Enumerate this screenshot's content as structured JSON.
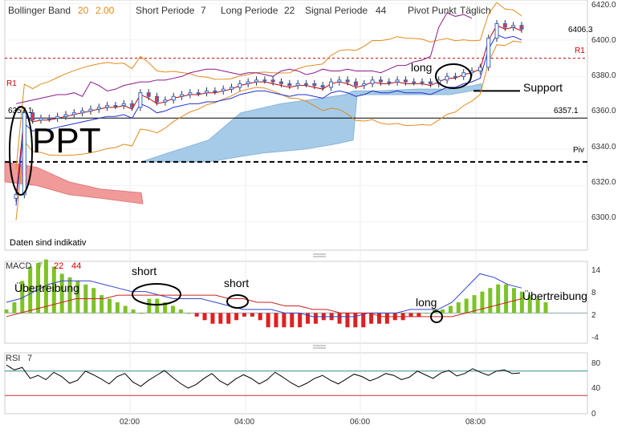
{
  "header": {
    "bb_label": "Bollinger Band",
    "bb_p1": "20",
    "bb_p2": "2.00",
    "short_label": "Short Periode",
    "short_val": "7",
    "long_label": "Long Periode",
    "long_val": "22",
    "signal_label": "Signal Periode",
    "signal_val": "44",
    "pivot_label": "Pivot Punkt",
    "pivot_val": "Täglich"
  },
  "price_panel": {
    "y_ticks": [
      "6420.0",
      "6400.0",
      "6380.0",
      "6360.0",
      "6340.0",
      "6320.0",
      "6300.0"
    ],
    "y_tick_values": [
      6420,
      6400,
      6380,
      6360,
      6340,
      6320,
      6300
    ],
    "last_price": "6406.3",
    "support_price": "6357.1",
    "r1_label": "R1",
    "piv_label": "Piv",
    "disclaimer": "Daten sind indikativ",
    "annotations": {
      "ppt": "PPT",
      "long": "long",
      "support": "Support"
    }
  },
  "macd_panel": {
    "title": "MACD",
    "p1": "7",
    "p2": "22",
    "p3": "44",
    "y_ticks": [
      "14",
      "8",
      "2",
      "-4"
    ],
    "y_tick_values": [
      14,
      8,
      2,
      -4
    ],
    "annotations": {
      "uebertreibung_left": "Übertreibung",
      "short1": "short",
      "short2": "short",
      "long": "long",
      "uebertreibung_right": "Übertreibung"
    }
  },
  "rsi_panel": {
    "title": "RSI",
    "p1": "7",
    "y_ticks": [
      "80",
      "40",
      "0"
    ],
    "y_tick_values": [
      80,
      40,
      0
    ],
    "upper_level": 70,
    "lower_level": 30
  },
  "x_axis": {
    "ticks": [
      "02:00",
      "04:00",
      "06:00",
      "08:00"
    ]
  },
  "chart_data": {
    "type": "line",
    "title": "",
    "x_ticks": [
      "02:00",
      "04:00",
      "06:00",
      "08:00"
    ],
    "price": {
      "ylim": [
        6288,
        6422
      ],
      "candles_close": [
        6315,
        6360,
        6356,
        6357,
        6357,
        6358,
        6359,
        6360,
        6361,
        6362,
        6363,
        6364,
        6364,
        6365,
        6363,
        6371,
        6369,
        6366,
        6367,
        6369,
        6370,
        6371,
        6371,
        6372,
        6372,
        6373,
        6374,
        6376,
        6377,
        6378,
        6378,
        6377,
        6376,
        6375,
        6376,
        6376,
        6375,
        6374,
        6377,
        6378,
        6377,
        6375,
        6376,
        6378,
        6377,
        6377,
        6378,
        6377,
        6377,
        6377,
        6376,
        6378,
        6380,
        6380,
        6382,
        6383,
        6385,
        6401,
        6409,
        6407,
        6408,
        6406
      ],
      "r1_level": 6390,
      "support_level": 6357.1,
      "pivot_level": 6333,
      "last": 6406.3
    },
    "macd": {
      "ylim": [
        -6,
        16
      ],
      "histogram": [
        1,
        3,
        9,
        13,
        14,
        15,
        13,
        11,
        10,
        9,
        8,
        7,
        5,
        4,
        3,
        2,
        1,
        0,
        4,
        4,
        3,
        2,
        1,
        0,
        -1,
        -2,
        -3,
        -3,
        -3,
        -2,
        -1,
        -1,
        -2,
        -4,
        -4,
        -4,
        -4,
        -4,
        -3,
        -3,
        -2,
        -2,
        -3,
        -4,
        -4,
        -4,
        -3,
        -3,
        -3,
        -2,
        -2,
        -1,
        -1,
        0,
        1,
        1,
        2,
        3,
        4,
        5,
        6,
        7,
        8,
        8,
        7,
        6,
        5,
        4,
        3
      ],
      "series": [
        {
          "name": "MACD",
          "values": [
            5,
            6,
            8,
            10,
            11,
            11,
            11,
            10,
            9,
            8,
            8,
            7,
            6,
            6,
            6,
            5,
            4,
            3,
            3,
            3,
            2,
            2,
            1,
            1,
            1,
            1,
            2,
            2,
            2,
            3,
            3,
            3,
            5,
            9,
            13,
            12,
            10,
            9
          ]
        },
        {
          "name": "Signal",
          "values": [
            1,
            2,
            3,
            4,
            5,
            6,
            6,
            6,
            7,
            7,
            7,
            7,
            7,
            7,
            7,
            7,
            6,
            6,
            5,
            5,
            4,
            4,
            3,
            3,
            2,
            2,
            2,
            1,
            1,
            1,
            1,
            1,
            1,
            2,
            3,
            4,
            5,
            6
          ]
        }
      ]
    },
    "rsi": {
      "ylim": [
        0,
        100
      ],
      "values": [
        80,
        72,
        76,
        58,
        63,
        56,
        68,
        61,
        50,
        55,
        70,
        64,
        57,
        49,
        61,
        66,
        52,
        45,
        55,
        63,
        71,
        60,
        50,
        42,
        48,
        58,
        66,
        54,
        47,
        57,
        64,
        58,
        49,
        56,
        68,
        60,
        51,
        44,
        50,
        58,
        63,
        55,
        49,
        57,
        65,
        61,
        54,
        59,
        66,
        63,
        56,
        60,
        70,
        64,
        58,
        67,
        71,
        62,
        66,
        74,
        68,
        63,
        70,
        72,
        66,
        67
      ]
    }
  }
}
